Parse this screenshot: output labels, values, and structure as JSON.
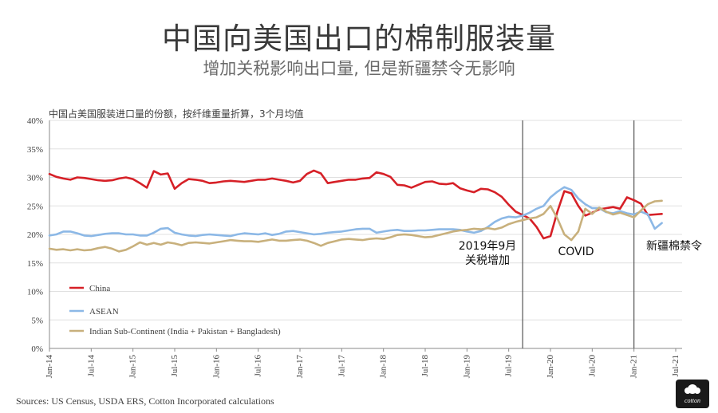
{
  "header": {
    "title": "中国向美国出口的棉制服装量",
    "subtitle": "增加关税影响出口量, 但是新疆禁令无影响"
  },
  "footer": {
    "source": "Sources: US Census, USDA ERS, Cotton Incorporated calculations",
    "logo_text": "cotton"
  },
  "chart_data": {
    "type": "line",
    "title": "中国占美国服装进口量的份额，按纤维重量折算，3个月均值",
    "ylabel": "",
    "xlabel": "",
    "ylim": [
      0,
      40
    ],
    "y_ticks": [
      "0%",
      "5%",
      "10%",
      "15%",
      "20%",
      "25%",
      "30%",
      "35%",
      "40%"
    ],
    "x_ticks": [
      "Jan-14",
      "Jul-14",
      "Jan-15",
      "Jul-15",
      "Jan-16",
      "Jul-16",
      "Jan-17",
      "Jul-17",
      "Jan-18",
      "Jul-18",
      "Jan-19",
      "Jul-19",
      "Jan-20",
      "Jul-20",
      "Jan-21",
      "Jul-21"
    ],
    "series": [
      {
        "name": "China",
        "color": "#d62027",
        "values": [
          30.6,
          30.1,
          29.8,
          29.6,
          30.0,
          29.9,
          29.7,
          29.5,
          29.4,
          29.5,
          29.8,
          30.0,
          29.7,
          29.0,
          28.2,
          31.1,
          30.5,
          30.7,
          28.0,
          29.0,
          29.7,
          29.6,
          29.4,
          29.0,
          29.1,
          29.3,
          29.4,
          29.3,
          29.2,
          29.4,
          29.6,
          29.6,
          29.8,
          29.6,
          29.4,
          29.1,
          29.4,
          30.6,
          31.2,
          30.7,
          29.0,
          29.2,
          29.4,
          29.6,
          29.6,
          29.8,
          29.9,
          30.9,
          30.6,
          30.1,
          28.7,
          28.6,
          28.2,
          28.7,
          29.2,
          29.3,
          28.9,
          28.8,
          29.0,
          28.1,
          27.7,
          27.4,
          28.0,
          27.9,
          27.4,
          26.6,
          25.2,
          24.0,
          23.4,
          22.8,
          21.3,
          19.3,
          19.7,
          24.0,
          27.6,
          27.2,
          25.0,
          23.3,
          23.8,
          24.4,
          24.6,
          24.8,
          24.5,
          26.5,
          26.0,
          25.4,
          23.4,
          23.5,
          23.6
        ],
        "values_note": "monthly, Jan-14 to ~Sep-21"
      },
      {
        "name": "ASEAN",
        "color": "#8cb8e6",
        "values": [
          19.8,
          20.0,
          20.5,
          20.5,
          20.2,
          19.8,
          19.7,
          19.9,
          20.1,
          20.2,
          20.2,
          20.0,
          20.0,
          19.8,
          19.8,
          20.3,
          21.0,
          21.1,
          20.3,
          20.0,
          19.8,
          19.7,
          19.9,
          20.0,
          19.9,
          19.8,
          19.7,
          20.0,
          20.2,
          20.1,
          20.0,
          20.2,
          19.9,
          20.1,
          20.5,
          20.6,
          20.4,
          20.2,
          20.0,
          20.1,
          20.3,
          20.4,
          20.5,
          20.7,
          20.9,
          21.0,
          21.0,
          20.3,
          20.5,
          20.7,
          20.8,
          20.6,
          20.6,
          20.7,
          20.7,
          20.8,
          20.9,
          20.9,
          20.9,
          20.8,
          20.5,
          20.3,
          20.6,
          21.3,
          22.2,
          22.8,
          23.1,
          23.0,
          23.3,
          23.8,
          24.5,
          25.0,
          26.5,
          27.5,
          28.3,
          27.8,
          26.3,
          25.3,
          24.6,
          24.6,
          23.9,
          23.7,
          24.1,
          23.7,
          23.5,
          24.0,
          23.5,
          21.0,
          22.0
        ]
      },
      {
        "name": "Indian Sub-Continent (India + Pakistan + Bangladesh)",
        "color": "#c8b07c",
        "values": [
          17.5,
          17.3,
          17.4,
          17.2,
          17.4,
          17.2,
          17.3,
          17.6,
          17.8,
          17.5,
          17.0,
          17.3,
          17.9,
          18.6,
          18.2,
          18.5,
          18.2,
          18.6,
          18.4,
          18.1,
          18.5,
          18.6,
          18.5,
          18.4,
          18.6,
          18.8,
          19.0,
          18.9,
          18.8,
          18.8,
          18.7,
          18.9,
          19.1,
          18.9,
          18.9,
          19.0,
          19.1,
          18.9,
          18.5,
          18.0,
          18.5,
          18.8,
          19.1,
          19.2,
          19.1,
          19.0,
          19.2,
          19.3,
          19.2,
          19.5,
          19.9,
          20.0,
          19.9,
          19.7,
          19.5,
          19.6,
          19.9,
          20.2,
          20.5,
          20.7,
          20.8,
          21.0,
          20.9,
          21.1,
          20.9,
          21.2,
          21.8,
          22.2,
          22.5,
          22.8,
          23.0,
          23.6,
          25.0,
          22.8,
          20.0,
          19.0,
          20.5,
          24.5,
          23.6,
          24.7,
          24.0,
          23.5,
          23.8,
          23.4,
          23.0,
          24.2,
          25.3,
          25.8,
          25.9
        ]
      }
    ],
    "annotations": [
      {
        "lines": [
          "2019年9月",
          "关税增加"
        ],
        "month_index": 68
      },
      {
        "lines": [
          "COVID"
        ],
        "month_index": null
      },
      {
        "lines": [
          "新疆棉禁令"
        ],
        "month_index": 84
      }
    ]
  }
}
